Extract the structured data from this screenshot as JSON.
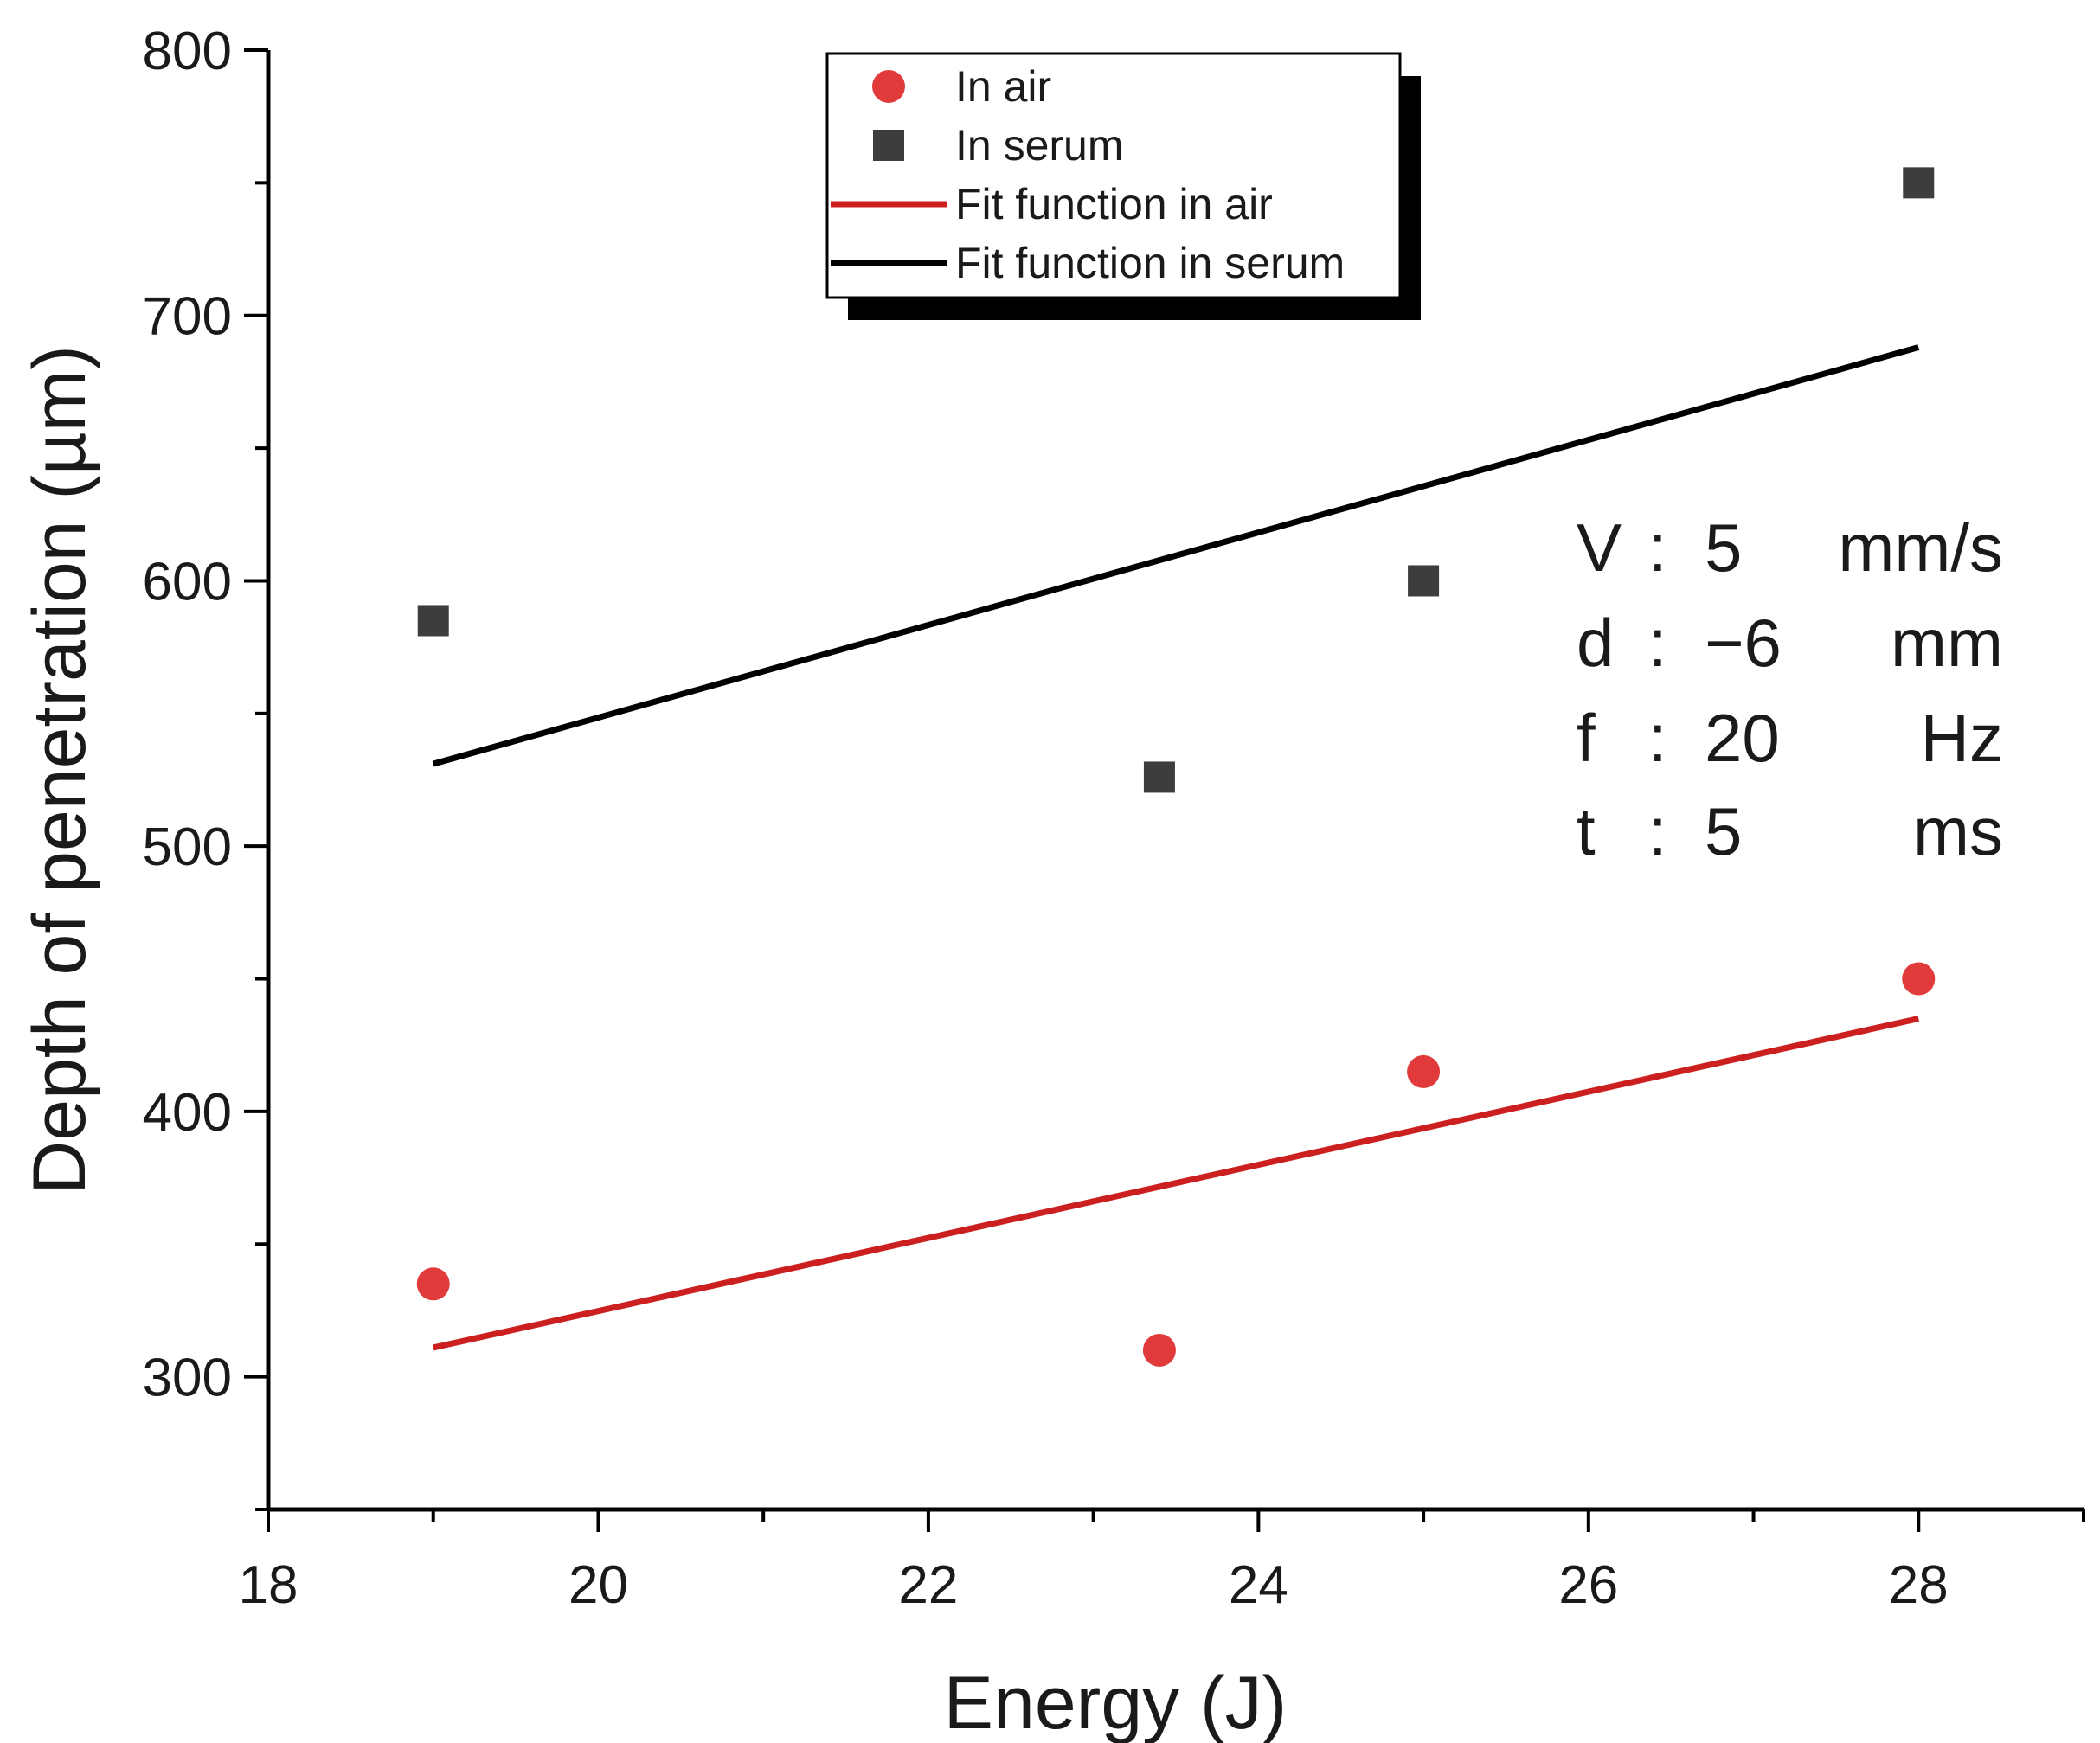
{
  "chart_data": {
    "type": "scatter",
    "title": "",
    "xlabel": "Energy (J)",
    "ylabel": "Depth of penetration (µm)",
    "xlim": [
      18,
      29
    ],
    "ylim": [
      250,
      800
    ],
    "xticks": [
      18,
      20,
      22,
      24,
      26,
      28
    ],
    "yticks": [
      300,
      400,
      500,
      600,
      700,
      800
    ],
    "grid": false,
    "legend_position": "top-center",
    "series": [
      {
        "name": "In air",
        "kind": "scatter",
        "marker": "circle",
        "color": "#e03a3a",
        "points": [
          [
            19,
            335
          ],
          [
            23.4,
            310
          ],
          [
            25,
            415
          ],
          [
            28,
            450
          ]
        ]
      },
      {
        "name": "In serum",
        "kind": "scatter",
        "marker": "square",
        "color": "#3d3d3d",
        "points": [
          [
            19,
            585
          ],
          [
            23.4,
            526
          ],
          [
            25,
            600
          ],
          [
            28,
            750
          ]
        ]
      },
      {
        "name": "Fit function in air",
        "kind": "line",
        "color": "#cc1f1f",
        "points": [
          [
            19,
            311
          ],
          [
            28,
            435
          ]
        ]
      },
      {
        "name": "Fit function in serum",
        "kind": "line",
        "color": "#000000",
        "points": [
          [
            19,
            531
          ],
          [
            28,
            688
          ]
        ]
      }
    ],
    "annotations": [
      {
        "label": "V",
        "sep": ":",
        "value": "5",
        "unit": "mm/s"
      },
      {
        "label": "d",
        "sep": ":",
        "value": "−6",
        "unit": "mm"
      },
      {
        "label": "f",
        "sep": ":",
        "value": "20",
        "unit": "Hz"
      },
      {
        "label": "t",
        "sep": ":",
        "value": "5",
        "unit": "ms"
      }
    ]
  }
}
